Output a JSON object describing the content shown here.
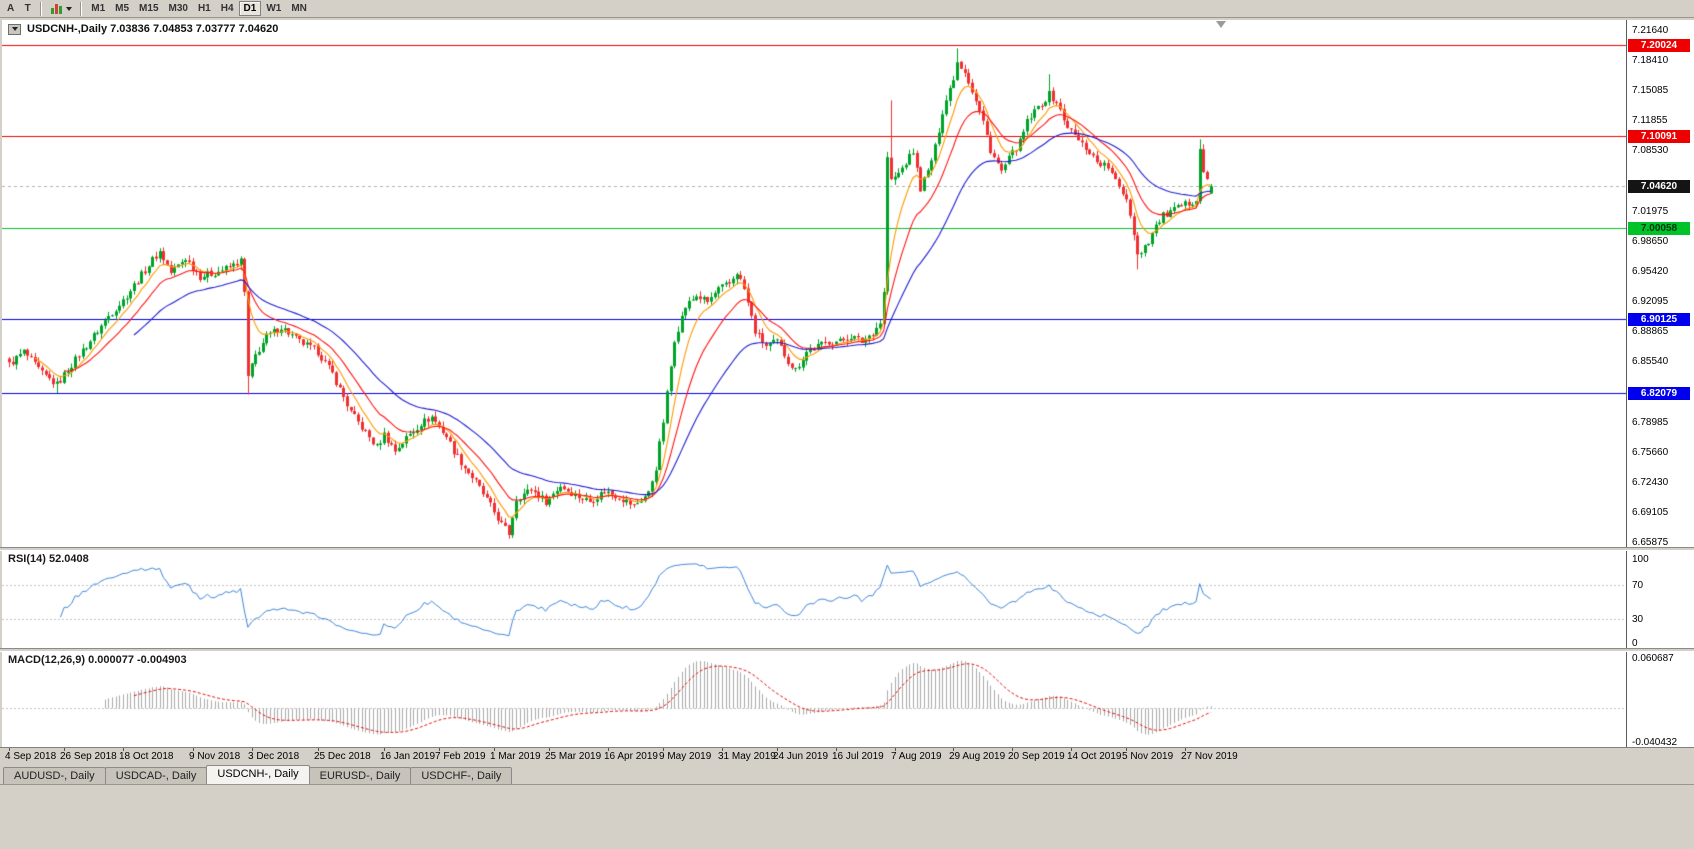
{
  "window": {
    "bg": "#d4d0c8"
  },
  "toolbar": {
    "tools": [
      {
        "label": "A"
      },
      {
        "label": "T"
      }
    ],
    "indicators_button": {
      "icon": "indicators-chart-icon",
      "has_dropdown": true
    },
    "timeframes": [
      "M1",
      "M5",
      "M15",
      "M30",
      "H1",
      "H4",
      "D1",
      "W1",
      "MN"
    ],
    "active_timeframe": "D1"
  },
  "chart": {
    "symbol": "USDCNH-",
    "timeframe": "Daily",
    "header": "USDCNH-,Daily 7.03836 7.04853 7.03777 7.04620",
    "open": "7.03836",
    "high": "7.04853",
    "low": "7.03777",
    "close": "7.04620"
  },
  "price_scale": {
    "labels": [
      "7.21640",
      "7.18410",
      "7.15085",
      "7.11855",
      "7.08530",
      "7.01975",
      "6.98650",
      "6.95420",
      "6.92095",
      "6.88865",
      "6.85540",
      "6.78985",
      "6.75660",
      "6.72430",
      "6.69105",
      "6.65875"
    ],
    "tags": [
      {
        "value": "7.20024",
        "bg": "#ee0000",
        "fg": "#ffffff"
      },
      {
        "value": "7.10091",
        "bg": "#ee0000",
        "fg": "#ffffff"
      },
      {
        "value": "7.04620",
        "bg": "#141414",
        "fg": "#ffffff"
      },
      {
        "value": "7.00058",
        "bg": "#00c32a",
        "fg": "#00340c"
      },
      {
        "value": "6.90125",
        "bg": "#0000ee",
        "fg": "#ffffff"
      },
      {
        "value": "6.82079",
        "bg": "#0000ee",
        "fg": "#ffffff"
      }
    ]
  },
  "rsi_panel": {
    "label": "RSI(14) 52.0408",
    "scale": [
      "100",
      "70",
      "30",
      "0"
    ],
    "line_color": "#3f86d8",
    "levels": [
      70,
      30
    ]
  },
  "macd_panel": {
    "label": "MACD(12,26,9) 0.000077 -0.004903",
    "scale_top": "0.060687",
    "scale_bottom": "-0.040432",
    "hist_color": "#aaaaaa",
    "signal_color": "#e01010"
  },
  "tabs": {
    "items": [
      "AUDUSD-, Daily",
      "USDCAD-, Daily",
      "USDCNH-, Daily",
      "EURUSD-, Daily",
      "USDCHF-, Daily"
    ],
    "active": "USDCNH-, Daily"
  },
  "chart_data": {
    "type": "candlestick",
    "title": "USDCNH- Daily",
    "bar_count": 328,
    "ylim": [
      6.65875,
      7.2164
    ],
    "current_ohlc": {
      "open": 7.03836,
      "high": 7.04853,
      "low": 7.03777,
      "close": 7.0462
    },
    "current_price": 7.0462,
    "up_color": "#00a32a",
    "down_color": "#f03030",
    "horizontal_lines": [
      {
        "price": 7.20024,
        "color": "#ee0000"
      },
      {
        "price": 7.10091,
        "color": "#ee0000"
      },
      {
        "price": 7.00058,
        "color": "#00c32a"
      },
      {
        "price": 6.90125,
        "color": "#0000ee"
      },
      {
        "price": 6.82079,
        "color": "#0000ee"
      }
    ],
    "x_ticks": {
      "labels": [
        "4 Sep 2018",
        "26 Sep 2018",
        "18 Oct 2018",
        "9 Nov 2018",
        "3 Dec 2018",
        "25 Dec 2018",
        "16 Jan 2019",
        "7 Feb 2019",
        "1 Mar 2019",
        "25 Mar 2019",
        "16 Apr 2019",
        "9 May 2019",
        "31 May 2019",
        "24 Jun 2019",
        "16 Jul 2019",
        "7 Aug 2019",
        "29 Aug 2019",
        "20 Sep 2019",
        "14 Oct 2019",
        "5 Nov 2019",
        "27 Nov 2019"
      ],
      "bar_index": [
        0,
        15,
        31,
        50,
        66,
        84,
        102,
        117,
        132,
        147,
        163,
        178,
        194,
        209,
        225,
        241,
        257,
        273,
        289,
        304,
        320
      ]
    },
    "close_path_anchors": [
      [
        0,
        6.852
      ],
      [
        4,
        6.866
      ],
      [
        9,
        6.842
      ],
      [
        13,
        6.83
      ],
      [
        17,
        6.852
      ],
      [
        22,
        6.878
      ],
      [
        27,
        6.905
      ],
      [
        31,
        6.922
      ],
      [
        35,
        6.944
      ],
      [
        39,
        6.966
      ],
      [
        41,
        6.975
      ],
      [
        44,
        6.952
      ],
      [
        48,
        6.968
      ],
      [
        52,
        6.948
      ],
      [
        56,
        6.952
      ],
      [
        60,
        6.958
      ],
      [
        63,
        6.965
      ],
      [
        64,
        6.93
      ],
      [
        65,
        6.838
      ],
      [
        67,
        6.862
      ],
      [
        70,
        6.882
      ],
      [
        74,
        6.893
      ],
      [
        79,
        6.877
      ],
      [
        84,
        6.866
      ],
      [
        88,
        6.842
      ],
      [
        93,
        6.8
      ],
      [
        97,
        6.778
      ],
      [
        100,
        6.762
      ],
      [
        102,
        6.776
      ],
      [
        105,
        6.758
      ],
      [
        108,
        6.772
      ],
      [
        112,
        6.788
      ],
      [
        115,
        6.795
      ],
      [
        119,
        6.774
      ],
      [
        121,
        6.758
      ],
      [
        124,
        6.74
      ],
      [
        127,
        6.724
      ],
      [
        131,
        6.698
      ],
      [
        134,
        6.678
      ],
      [
        136,
        6.668
      ],
      [
        138,
        6.706
      ],
      [
        142,
        6.716
      ],
      [
        146,
        6.703
      ],
      [
        150,
        6.72
      ],
      [
        154,
        6.71
      ],
      [
        158,
        6.703
      ],
      [
        162,
        6.714
      ],
      [
        166,
        6.708
      ],
      [
        170,
        6.698
      ],
      [
        174,
        6.712
      ],
      [
        176,
        6.74
      ],
      [
        178,
        6.79
      ],
      [
        181,
        6.88
      ],
      [
        184,
        6.915
      ],
      [
        187,
        6.927
      ],
      [
        190,
        6.92
      ],
      [
        193,
        6.934
      ],
      [
        196,
        6.94
      ],
      [
        198,
        6.953
      ],
      [
        200,
        6.934
      ],
      [
        203,
        6.888
      ],
      [
        206,
        6.872
      ],
      [
        209,
        6.877
      ],
      [
        212,
        6.856
      ],
      [
        214,
        6.846
      ],
      [
        217,
        6.866
      ],
      [
        220,
        6.872
      ],
      [
        223,
        6.877
      ],
      [
        226,
        6.877
      ],
      [
        229,
        6.883
      ],
      [
        232,
        6.877
      ],
      [
        235,
        6.887
      ],
      [
        237,
        6.898
      ],
      [
        238,
        6.93
      ],
      [
        239,
        7.078
      ],
      [
        240,
        7.052
      ],
      [
        242,
        7.06
      ],
      [
        244,
        7.072
      ],
      [
        246,
        7.084
      ],
      [
        248,
        7.044
      ],
      [
        250,
        7.062
      ],
      [
        252,
        7.088
      ],
      [
        254,
        7.128
      ],
      [
        257,
        7.165
      ],
      [
        258,
        7.182
      ],
      [
        260,
        7.172
      ],
      [
        262,
        7.15
      ],
      [
        265,
        7.116
      ],
      [
        267,
        7.086
      ],
      [
        270,
        7.062
      ],
      [
        272,
        7.076
      ],
      [
        275,
        7.094
      ],
      [
        277,
        7.116
      ],
      [
        280,
        7.132
      ],
      [
        283,
        7.146
      ],
      [
        285,
        7.138
      ],
      [
        287,
        7.118
      ],
      [
        289,
        7.106
      ],
      [
        291,
        7.096
      ],
      [
        294,
        7.084
      ],
      [
        296,
        7.073
      ],
      [
        299,
        7.067
      ],
      [
        301,
        7.051
      ],
      [
        304,
        7.034
      ],
      [
        306,
        6.996
      ],
      [
        307,
        6.972
      ],
      [
        308,
        6.976
      ],
      [
        310,
        6.987
      ],
      [
        312,
        7.003
      ],
      [
        314,
        7.014
      ],
      [
        317,
        7.02
      ],
      [
        320,
        7.026
      ],
      [
        322,
        7.03
      ],
      [
        323,
        7.034
      ],
      [
        324,
        7.088
      ],
      [
        325,
        7.062
      ],
      [
        326,
        7.052
      ],
      [
        327,
        7.046
      ]
    ],
    "extremes": [
      {
        "i": 13,
        "low": 6.821
      },
      {
        "i": 65,
        "low": 6.8194
      },
      {
        "i": 136,
        "low": 6.6624
      },
      {
        "i": 240,
        "high": 7.1397
      },
      {
        "i": 258,
        "high": 7.1964
      },
      {
        "i": 283,
        "high": 7.1682
      },
      {
        "i": 307,
        "low": 6.9557
      },
      {
        "i": 324,
        "high": 7.0973
      }
    ],
    "moving_averages": [
      {
        "type": "EMA",
        "period": 7,
        "color": "#ff9900"
      },
      {
        "type": "EMA",
        "period": 15,
        "color": "#ff1515"
      },
      {
        "type": "EMA",
        "period": 34,
        "color": "#1f1fd0"
      }
    ],
    "indicators": [
      {
        "name": "RSI",
        "period": 14,
        "current": 52.0408,
        "levels": [
          100,
          70,
          30,
          0
        ]
      },
      {
        "name": "MACD",
        "fast": 12,
        "slow": 26,
        "signal": 9,
        "current_macd": 7.7e-05,
        "current_signal": -0.004903,
        "scale_max": 0.060687,
        "scale_min": -0.040432
      }
    ]
  }
}
